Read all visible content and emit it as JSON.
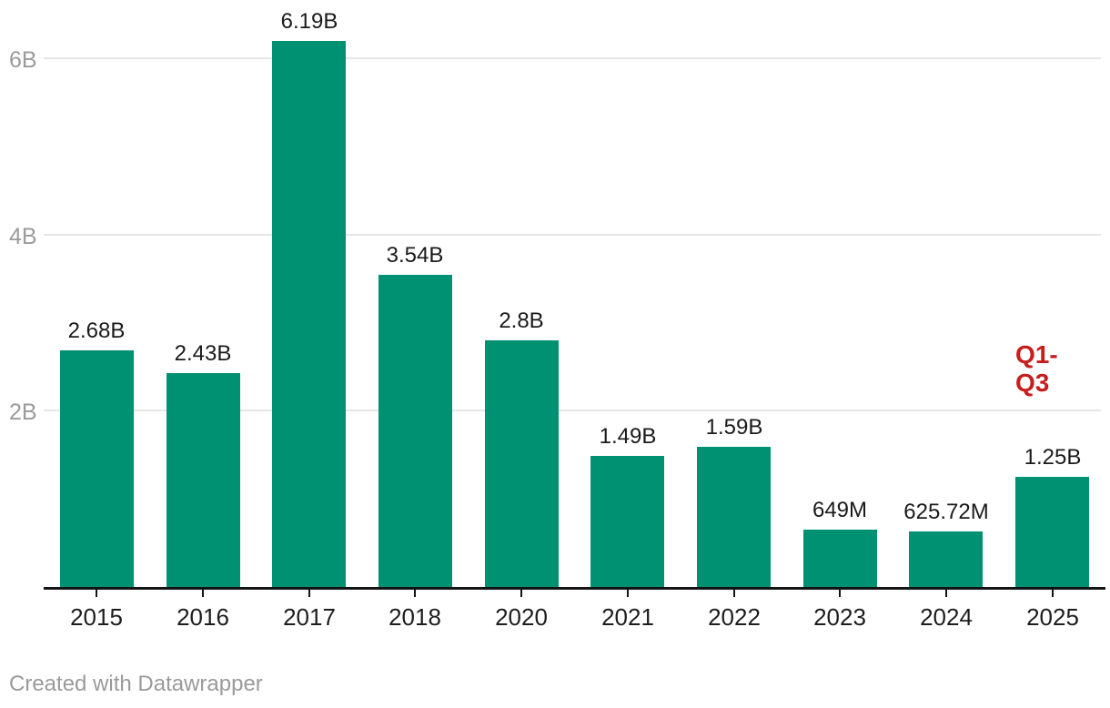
{
  "chart_data": {
    "type": "bar",
    "categories": [
      "2015",
      "2016",
      "2017",
      "2018",
      "2020",
      "2021",
      "2022",
      "2023",
      "2024",
      "2025"
    ],
    "values": [
      2.68,
      2.43,
      6.19,
      3.54,
      2.8,
      1.49,
      1.59,
      0.649,
      0.62572,
      1.25
    ],
    "value_labels": [
      "2.68B",
      "2.43B",
      "6.19B",
      "3.54B",
      "2.8B",
      "1.49B",
      "1.59B",
      "649M",
      "625.72M",
      "1.25B"
    ],
    "title": "",
    "xlabel": "",
    "ylabel": "",
    "ylim": [
      0,
      6.4
    ],
    "yticks": [
      {
        "value": 2,
        "label": "2B"
      },
      {
        "value": 4,
        "label": "4B"
      },
      {
        "value": 6,
        "label": "6B"
      }
    ],
    "grid": "horizontal",
    "legend": "none",
    "bar_color": "#009173",
    "annotation": {
      "text": "Q1-Q3",
      "color": "#c71e1d",
      "target_category": "2025"
    }
  },
  "footer": {
    "credit": "Created with Datawrapper"
  },
  "colors": {
    "bar": "#009173",
    "annotation_red": "#c71e1d",
    "axis_text_muted": "#9b9b9b",
    "axis_text_dark": "#1d1d1f",
    "gridline": "#e6e6e6",
    "baseline": "#141414",
    "background": "#ffffff"
  }
}
